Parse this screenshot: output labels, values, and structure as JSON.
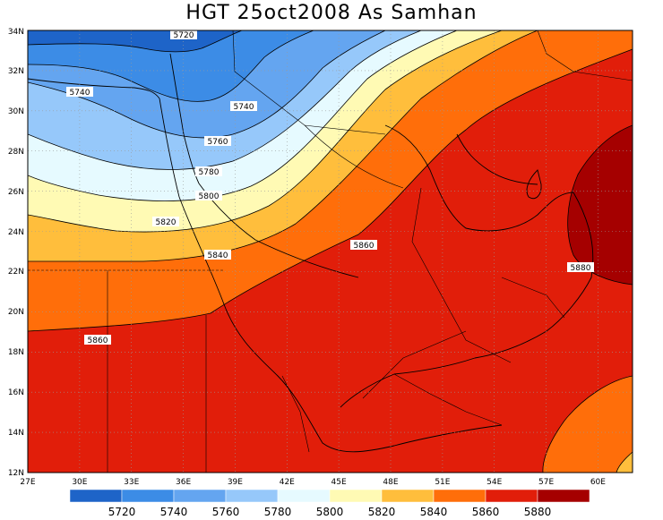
{
  "title": "HGT 25oct2008 As Samhan",
  "map": {
    "lon_range": [
      27,
      62
    ],
    "lat_range": [
      12,
      34
    ],
    "lon_ticks": [
      "27E",
      "30E",
      "33E",
      "36E",
      "39E",
      "42E",
      "45E",
      "48E",
      "51E",
      "54E",
      "57E",
      "60E"
    ],
    "lat_ticks": [
      "12N",
      "14N",
      "16N",
      "18N",
      "20N",
      "22N",
      "24N",
      "26N",
      "28N",
      "30N",
      "32N",
      "34N"
    ],
    "grid": "dotted",
    "contour_labels": [
      "5720",
      "5740",
      "5740",
      "5760",
      "5780",
      "5800",
      "5820",
      "5840",
      "5860",
      "5860",
      "5880"
    ]
  },
  "colorbar": {
    "labels": [
      "5720",
      "5740",
      "5760",
      "5780",
      "5800",
      "5820",
      "5840",
      "5860",
      "5880"
    ],
    "colors": [
      "#1e64c8",
      "#3c8ce6",
      "#64a5f0",
      "#96c8fa",
      "#e6faff",
      "#fffab4",
      "#ffbe3c",
      "#ff6e0a",
      "#e11e0a",
      "#a50000"
    ]
  }
}
